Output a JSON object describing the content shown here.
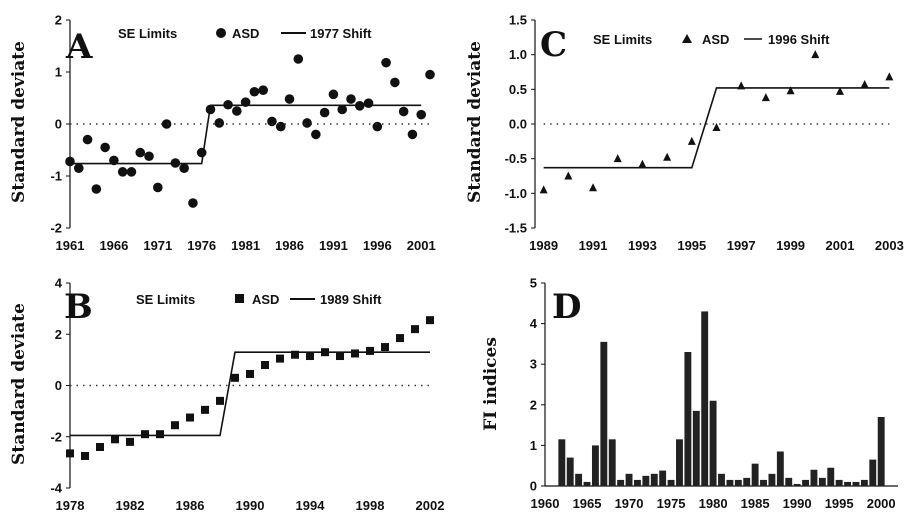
{
  "chart_data": [
    {
      "panel": "A",
      "type": "scatter",
      "ylabel": "Standard deviate",
      "legend": [
        "SE Limits",
        "ASD",
        "1977 Shift"
      ],
      "xlim": [
        1961,
        2002
      ],
      "ylim": [
        -2,
        2
      ],
      "xticks": [
        1961,
        1966,
        1971,
        1976,
        1981,
        1986,
        1991,
        1996,
        2001
      ],
      "yticks": [
        -2,
        -1,
        0,
        1,
        2
      ],
      "series": [
        {
          "name": "ASD",
          "marker": "circle",
          "x": [
            1961,
            1962,
            1963,
            1964,
            1965,
            1966,
            1967,
            1968,
            1969,
            1970,
            1971,
            1972,
            1973,
            1974,
            1975,
            1976,
            1977,
            1978,
            1979,
            1980,
            1981,
            1982,
            1983,
            1984,
            1985,
            1986,
            1987,
            1988,
            1989,
            1990,
            1991,
            1992,
            1993,
            1994,
            1995,
            1996,
            1997,
            1998,
            1999,
            2000,
            2001,
            2002
          ],
          "y": [
            -0.72,
            -0.85,
            -0.3,
            -1.25,
            -0.45,
            -0.7,
            -0.92,
            -0.92,
            -0.55,
            -0.62,
            -1.22,
            0.0,
            -0.75,
            -0.85,
            -1.52,
            -0.55,
            0.28,
            0.02,
            0.37,
            0.25,
            0.42,
            0.62,
            0.65,
            0.05,
            -0.05,
            0.48,
            1.25,
            0.02,
            -0.2,
            0.22,
            0.57,
            0.28,
            0.48,
            0.35,
            0.4,
            -0.05,
            1.18,
            0.8,
            0.24,
            -0.2,
            0.18,
            0.95
          ]
        },
        {
          "name": "1977 Shift",
          "style": "line",
          "x": [
            1961,
            1976,
            1977,
            2001
          ],
          "y": [
            -0.76,
            -0.76,
            0.36,
            0.36
          ]
        },
        {
          "name": "SE Limits",
          "style": "dotted",
          "x": [
            1961,
            2002
          ],
          "y": [
            0,
            0
          ]
        }
      ],
      "panel_label": "A"
    },
    {
      "panel": "B",
      "type": "scatter",
      "ylabel": "Standard deviate",
      "legend": [
        "SE Limits",
        "ASD",
        "1989 Shift"
      ],
      "xlim": [
        1978,
        2002
      ],
      "ylim": [
        -4,
        4
      ],
      "xticks": [
        1978,
        1982,
        1986,
        1990,
        1994,
        1998,
        2002
      ],
      "yticks": [
        -4,
        -2,
        0,
        2,
        4
      ],
      "series": [
        {
          "name": "ASD",
          "marker": "square",
          "x": [
            1978,
            1979,
            1980,
            1981,
            1982,
            1983,
            1984,
            1985,
            1986,
            1987,
            1988,
            1989,
            1990,
            1991,
            1992,
            1993,
            1994,
            1995,
            1996,
            1997,
            1998,
            1999,
            2000,
            2001,
            2002
          ],
          "y": [
            -2.65,
            -2.75,
            -2.4,
            -2.1,
            -2.2,
            -1.9,
            -1.9,
            -1.55,
            -1.25,
            -0.95,
            -0.6,
            0.3,
            0.45,
            0.8,
            1.05,
            1.2,
            1.15,
            1.3,
            1.15,
            1.25,
            1.35,
            1.5,
            1.85,
            2.2,
            2.55
          ]
        },
        {
          "name": "1989 Shift",
          "style": "line",
          "x": [
            1978,
            1988,
            1989,
            2002
          ],
          "y": [
            -1.95,
            -1.95,
            1.3,
            1.3
          ]
        },
        {
          "name": "SE Limits",
          "style": "dotted",
          "x": [
            1978,
            2002
          ],
          "y": [
            0,
            0
          ]
        }
      ],
      "panel_label": "B"
    },
    {
      "panel": "C",
      "type": "scatter",
      "ylabel": "Standard deviate",
      "legend": [
        "SE Limits",
        "ASD",
        "1996 Shift"
      ],
      "xlim": [
        1989,
        2003
      ],
      "ylim": [
        -1.5,
        1.5
      ],
      "xticks": [
        1989,
        1991,
        1993,
        1995,
        1997,
        1999,
        2001,
        2003
      ],
      "yticks": [
        -1.5,
        -1.0,
        -0.5,
        0.0,
        0.5,
        1.0,
        1.5
      ],
      "ytick_labels": [
        "-1.5",
        "-1.0",
        "-0.5",
        "0.0",
        "0.5",
        "1.0",
        "1.5"
      ],
      "series": [
        {
          "name": "ASD",
          "marker": "triangle",
          "x": [
            1989,
            1990,
            1991,
            1992,
            1993,
            1994,
            1995,
            1996,
            1997,
            1998,
            1999,
            2000,
            2001,
            2002,
            2003
          ],
          "y": [
            -0.95,
            -0.75,
            -0.92,
            -0.5,
            -0.58,
            -0.48,
            -0.25,
            -0.05,
            0.55,
            0.38,
            0.48,
            1.0,
            0.47,
            0.57,
            0.68
          ]
        },
        {
          "name": "1996 Shift",
          "style": "line",
          "x": [
            1989,
            1995,
            1996,
            2003
          ],
          "y": [
            -0.63,
            -0.63,
            0.52,
            0.52
          ]
        },
        {
          "name": "SE Limits",
          "style": "dotted",
          "x": [
            1989,
            2003
          ],
          "y": [
            0,
            0
          ]
        }
      ],
      "panel_label": "C"
    },
    {
      "panel": "D",
      "type": "bar",
      "ylabel": "FI indices",
      "xlim": [
        1960,
        2002
      ],
      "ylim": [
        0,
        5
      ],
      "xticks": [
        1960,
        1965,
        1970,
        1975,
        1980,
        1985,
        1990,
        1995,
        2000
      ],
      "yticks": [
        0,
        1,
        2,
        3,
        4,
        5
      ],
      "categories": [
        1962,
        1963,
        1964,
        1965,
        1966,
        1967,
        1968,
        1969,
        1970,
        1971,
        1972,
        1973,
        1974,
        1975,
        1976,
        1977,
        1978,
        1979,
        1980,
        1981,
        1982,
        1983,
        1984,
        1985,
        1986,
        1987,
        1988,
        1989,
        1990,
        1991,
        1992,
        1993,
        1994,
        1995,
        1996,
        1997,
        1998,
        1999,
        2000,
        2001
      ],
      "values": [
        1.15,
        0.7,
        0.3,
        0.1,
        1.0,
        3.55,
        1.15,
        0.15,
        0.3,
        0.15,
        0.25,
        0.3,
        0.38,
        0.15,
        1.15,
        3.3,
        1.85,
        4.3,
        2.1,
        0.3,
        0.15,
        0.15,
        0.2,
        0.55,
        0.15,
        0.3,
        0.85,
        0.2,
        0.05,
        0.15,
        0.4,
        0.2,
        0.45,
        0.15,
        0.1,
        0.1,
        0.15,
        0.65,
        1.7,
        0.0
      ],
      "panel_label": "D"
    }
  ]
}
